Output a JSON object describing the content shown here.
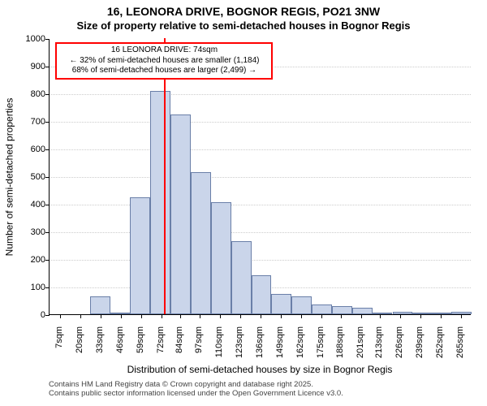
{
  "title_line1": "16, LEONORA DRIVE, BOGNOR REGIS, PO21 3NW",
  "title_line2": "Size of property relative to semi-detached houses in Bognor Regis",
  "y_axis_label": "Number of semi-detached properties",
  "x_axis_label": "Distribution of semi-detached houses by size in Bognor Regis",
  "footnote_line1": "Contains HM Land Registry data © Crown copyright and database right 2025.",
  "footnote_line2": "Contains public sector information licensed under the Open Government Licence v3.0.",
  "callout_line1": "16 LEONORA DRIVE: 74sqm",
  "callout_line2": "← 32% of semi-detached houses are smaller (1,184)",
  "callout_line3": "68% of semi-detached houses are larger (2,499) →",
  "chart": {
    "type": "histogram",
    "background_color": "#ffffff",
    "grid_color": "#cccccc",
    "bar_fill": "#cad5ea",
    "bar_stroke": "#6a7fa8",
    "marker_color": "#ff0000",
    "marker_value": 74,
    "ylim": [
      0,
      1000
    ],
    "ytick_step": 100,
    "xlim": [
      0,
      272
    ],
    "bin_width_sqm": 13,
    "bin_starts": [
      0,
      13,
      26,
      39,
      52,
      65,
      78,
      91,
      104,
      117,
      130,
      143,
      156,
      169,
      182,
      195,
      208,
      221,
      234,
      247,
      259
    ],
    "values": [
      0,
      0,
      65,
      5,
      425,
      810,
      725,
      515,
      405,
      265,
      140,
      75,
      65,
      35,
      30,
      25,
      5,
      10,
      5,
      5,
      10
    ],
    "x_tick_positions": [
      7,
      20,
      33,
      46,
      59,
      72,
      84,
      97,
      110,
      123,
      136,
      149,
      162,
      175,
      188,
      201,
      213,
      226,
      239,
      252,
      265
    ],
    "x_tick_labels": [
      "7sqm",
      "20sqm",
      "33sqm",
      "46sqm",
      "59sqm",
      "72sqm",
      "84sqm",
      "97sqm",
      "110sqm",
      "123sqm",
      "136sqm",
      "149sqm",
      "162sqm",
      "175sqm",
      "188sqm",
      "201sqm",
      "213sqm",
      "226sqm",
      "239sqm",
      "252sqm",
      "265sqm"
    ],
    "title_fontsize": 14,
    "label_fontsize": 12,
    "tick_fontsize": 11,
    "callout_fontsize": 10,
    "footnote_fontsize": 9.5
  }
}
